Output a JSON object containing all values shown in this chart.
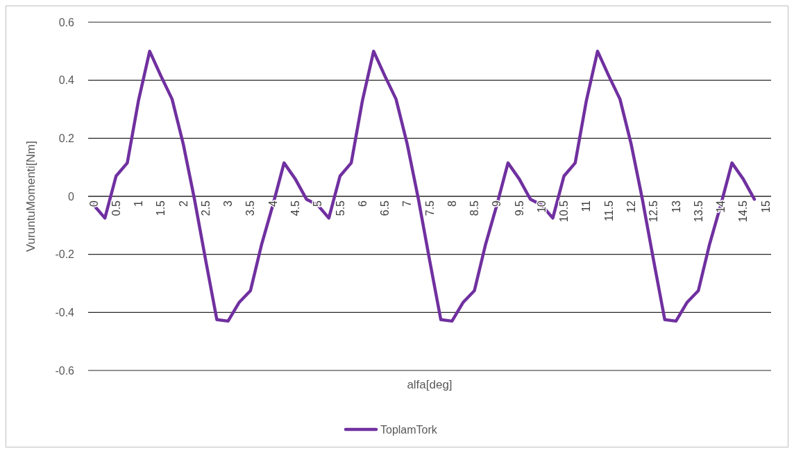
{
  "chart_data": {
    "type": "line",
    "xlabel": "alfa[deg]",
    "ylabel": "VuruntuMomenti[Nm]",
    "xlim": [
      0,
      15
    ],
    "xticks": [
      0,
      0.5,
      1,
      1.5,
      2,
      2.5,
      3,
      3.5,
      4,
      4.5,
      5,
      5.5,
      6,
      6.5,
      7,
      7.5,
      8,
      8.5,
      9,
      9.5,
      10,
      10.5,
      11,
      11.5,
      12,
      12.5,
      13,
      13.5,
      14,
      14.5,
      15
    ],
    "ylim": [
      -0.6,
      0.6
    ],
    "yticks": [
      -0.6,
      -0.4,
      -0.2,
      0,
      0.2,
      0.4,
      0.6
    ],
    "grid": "y",
    "legend": "bottom",
    "marker": "none",
    "line_style": "solid",
    "x": [
      0,
      0.25,
      0.5,
      0.75,
      1,
      1.25,
      1.5,
      1.75,
      2,
      2.25,
      2.5,
      2.75,
      3,
      3.25,
      3.5,
      3.75,
      4,
      4.25,
      4.5,
      4.75,
      5,
      5.25,
      5.5,
      5.75,
      6,
      6.25,
      6.5,
      6.75,
      7,
      7.25,
      7.5,
      7.75,
      8,
      8.25,
      8.5,
      8.75,
      9,
      9.25,
      9.5,
      9.75,
      10,
      10.25,
      10.5,
      10.75,
      11,
      11.25,
      11.5,
      11.75,
      12,
      12.25,
      12.5,
      12.75,
      13,
      13.25,
      13.5,
      13.75,
      14,
      14.25,
      14.5,
      14.75
    ],
    "series": [
      {
        "name": "ToplamTork",
        "color": "#7030a0",
        "values": [
          -0.03,
          -0.075,
          0.07,
          0.115,
          0.33,
          0.5,
          0.415,
          0.335,
          0.18,
          -0.01,
          -0.22,
          -0.425,
          -0.43,
          -0.365,
          -0.325,
          -0.165,
          -0.03,
          0.115,
          0.06,
          -0.01,
          -0.03,
          -0.075,
          0.07,
          0.115,
          0.33,
          0.5,
          0.415,
          0.335,
          0.18,
          -0.01,
          -0.22,
          -0.425,
          -0.43,
          -0.365,
          -0.325,
          -0.165,
          -0.03,
          0.115,
          0.06,
          -0.01,
          -0.03,
          -0.075,
          0.07,
          0.115,
          0.33,
          0.5,
          0.415,
          0.335,
          0.18,
          -0.01,
          -0.22,
          -0.425,
          -0.43,
          -0.365,
          -0.325,
          -0.165,
          -0.03,
          0.115,
          0.06,
          -0.01
        ]
      }
    ]
  }
}
